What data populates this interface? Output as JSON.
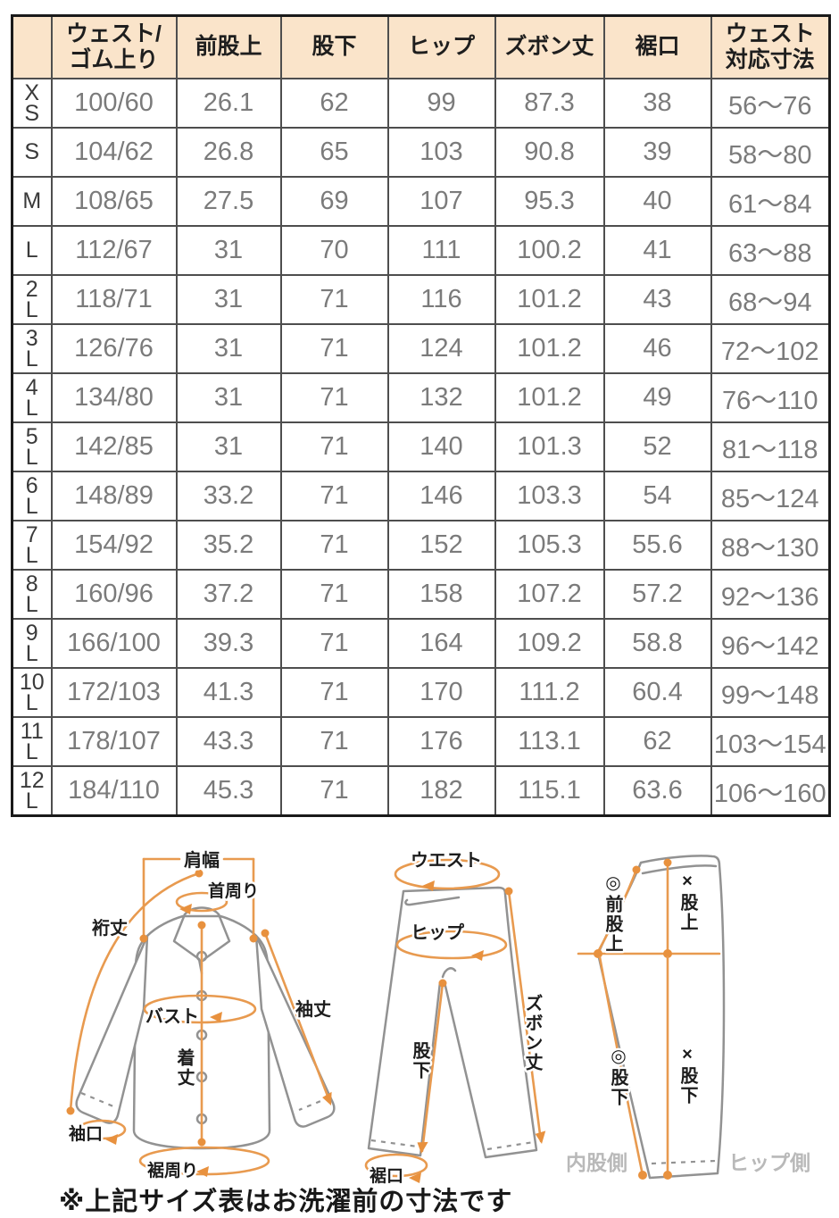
{
  "page": {
    "note": "※上記サイズ表はお洗濯前の寸法です"
  },
  "colors": {
    "header_bg": "#fae4ca",
    "outer_border": "#1a1a1a",
    "inner_border": "#4e4e4e",
    "value_text": "#7b7b7b",
    "accent_orange": "#e89a4f",
    "garment_outline_gray": "#929292",
    "side_caption_gray": "#b9b9b9"
  },
  "table": {
    "headers": [
      "",
      "ウェスト/\nゴム上り",
      "前股上",
      "股下",
      "ヒップ",
      "ズボン丈",
      "裾口",
      "ウェスト\n対応寸法"
    ],
    "rows": [
      {
        "size": "X\nS",
        "values": [
          "100/60",
          "26.1",
          "62",
          "99",
          "87.3",
          "38",
          "56〜76"
        ]
      },
      {
        "size": "S",
        "values": [
          "104/62",
          "26.8",
          "65",
          "103",
          "90.8",
          "39",
          "58〜80"
        ]
      },
      {
        "size": "M",
        "values": [
          "108/65",
          "27.5",
          "69",
          "107",
          "95.3",
          "40",
          "61〜84"
        ]
      },
      {
        "size": "L",
        "values": [
          "112/67",
          "31",
          "70",
          "111",
          "100.2",
          "41",
          "63〜88"
        ]
      },
      {
        "size": "2\nL",
        "values": [
          "118/71",
          "31",
          "71",
          "116",
          "101.2",
          "43",
          "68〜94"
        ]
      },
      {
        "size": "3\nL",
        "values": [
          "126/76",
          "31",
          "71",
          "124",
          "101.2",
          "46",
          "72〜102"
        ]
      },
      {
        "size": "4\nL",
        "values": [
          "134/80",
          "31",
          "71",
          "132",
          "101.2",
          "49",
          "76〜110"
        ]
      },
      {
        "size": "5\nL",
        "values": [
          "142/85",
          "31",
          "71",
          "140",
          "101.3",
          "52",
          "81〜118"
        ]
      },
      {
        "size": "6\nL",
        "values": [
          "148/89",
          "33.2",
          "71",
          "146",
          "103.3",
          "54",
          "85〜124"
        ]
      },
      {
        "size": "7\nL",
        "values": [
          "154/92",
          "35.2",
          "71",
          "152",
          "105.3",
          "55.6",
          "88〜130"
        ]
      },
      {
        "size": "8\nL",
        "values": [
          "160/96",
          "37.2",
          "71",
          "158",
          "107.2",
          "57.2",
          "92〜136"
        ]
      },
      {
        "size": "9\nL",
        "values": [
          "166/100",
          "39.3",
          "71",
          "164",
          "109.2",
          "58.8",
          "96〜142"
        ]
      },
      {
        "size": "10\nL",
        "values": [
          "172/103",
          "41.3",
          "71",
          "170",
          "111.2",
          "60.4",
          "99〜148"
        ]
      },
      {
        "size": "11\nL",
        "values": [
          "178/107",
          "43.3",
          "71",
          "176",
          "113.1",
          "62",
          "103〜154"
        ]
      },
      {
        "size": "12\nL",
        "values": [
          "184/110",
          "45.3",
          "71",
          "182",
          "115.1",
          "63.6",
          "106〜160"
        ]
      }
    ]
  },
  "diagrams": {
    "shirt": {
      "labels": {
        "shoulder_width": "肩幅",
        "neck": "首周り",
        "yuki_length": "裄丈",
        "bust": "バスト",
        "sleeve_length": "袖丈",
        "body_length": "着丈",
        "cuff": "袖口",
        "hem_around": "裾周り"
      }
    },
    "pants_front": {
      "labels": {
        "waist": "ウエスト",
        "hip": "ヒップ",
        "pants_length": "ズボン丈",
        "inseam": "股下",
        "hem": "裾口"
      }
    },
    "pants_side": {
      "labels": {
        "front_rise": "◎前股上",
        "rise": "×股上",
        "inseam_a": "◎股下",
        "inseam_b": "×股下",
        "inner_side": "内股側",
        "hip_side": "ヒップ側"
      }
    }
  }
}
